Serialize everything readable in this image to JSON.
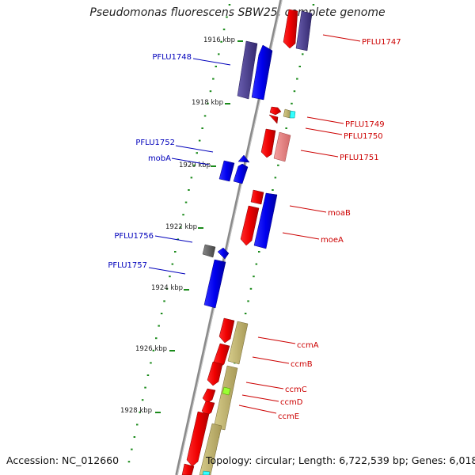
{
  "title": "Pseudomonas fluorescens SBW25, complete genome",
  "accession": "Accession: NC_012660",
  "summary": "Topology: circular; Length: 6,722,539 bp; Genes: 6,018",
  "colors": {
    "forward_label": "#cc0000",
    "reverse_label": "#0000bb",
    "tick": "#1a8a1a",
    "backbone": "#888888"
  },
  "scale_labels": [
    "1916 kbp",
    "1918 kbp",
    "1920 kbp",
    "1922 kbp",
    "1924 kbp",
    "1926 kbp",
    "1928 kbp"
  ],
  "gene_labels": {
    "PFLU1747": "PFLU1747",
    "PFLU1748": "PFLU1748",
    "PFLU1749": "PFLU1749",
    "PFLU1750": "PFLU1750",
    "PFLU1751": "PFLU1751",
    "PFLU1752": "PFLU1752",
    "mobA": "mobA",
    "moaB": "moaB",
    "moeA": "moeA",
    "PFLU1756": "PFLU1756",
    "PFLU1757": "PFLU1757",
    "ccmA": "ccmA",
    "ccmB": "ccmB",
    "ccmC": "ccmC",
    "ccmD": "ccmD",
    "ccmE": "ccmE"
  }
}
